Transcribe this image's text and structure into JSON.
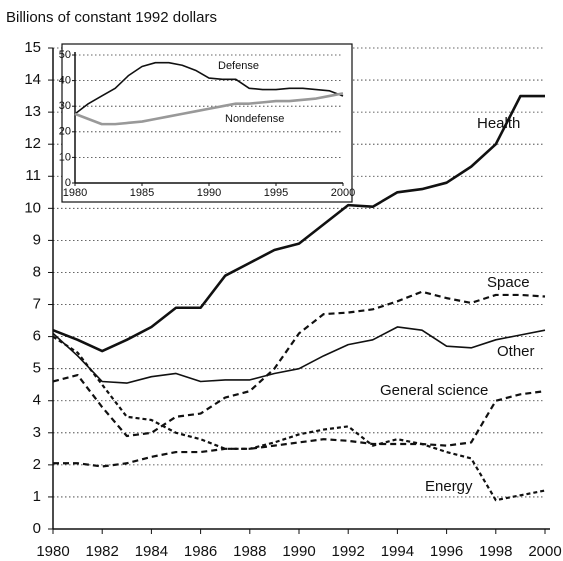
{
  "chart_data": [
    {
      "type": "line",
      "y_label": "Billions of constant 1992 dollars",
      "x": [
        1980,
        1981,
        1982,
        1983,
        1984,
        1985,
        1986,
        1987,
        1988,
        1989,
        1990,
        1991,
        1992,
        1993,
        1994,
        1995,
        1996,
        1997,
        1998,
        1999,
        2000
      ],
      "xlim": [
        1980,
        2000
      ],
      "xticks": [
        1980,
        1982,
        1984,
        1986,
        1988,
        1990,
        1992,
        1994,
        1996,
        1998,
        2000
      ],
      "ylim": [
        0,
        15
      ],
      "yticks": [
        0,
        1,
        2,
        3,
        4,
        5,
        6,
        7,
        8,
        9,
        10,
        11,
        12,
        13,
        14,
        15
      ],
      "grid": true,
      "series": [
        {
          "name": "Health",
          "color": "#111111",
          "line_style": "solid-thick",
          "values": [
            6.2,
            5.9,
            5.55,
            5.9,
            6.3,
            6.9,
            6.9,
            7.9,
            8.3,
            8.7,
            8.9,
            9.5,
            10.1,
            10.05,
            10.5,
            10.6,
            10.8,
            11.3,
            12.0,
            13.5,
            13.5
          ]
        },
        {
          "name": "Space",
          "color": "#111111",
          "line_style": "dashed",
          "values": [
            4.6,
            4.8,
            3.8,
            2.9,
            3.0,
            3.5,
            3.6,
            4.1,
            4.3,
            5.0,
            6.1,
            6.7,
            6.75,
            6.85,
            7.1,
            7.4,
            7.2,
            7.05,
            7.3,
            7.3,
            7.25
          ]
        },
        {
          "name": "Other",
          "color": "#111111",
          "line_style": "solid",
          "values": [
            6.1,
            5.4,
            4.6,
            4.55,
            4.75,
            4.85,
            4.6,
            4.65,
            4.65,
            4.85,
            5.0,
            5.4,
            5.75,
            5.9,
            6.3,
            6.2,
            5.7,
            5.65,
            5.9,
            6.05,
            6.2
          ]
        },
        {
          "name": "General science",
          "color": "#111111",
          "line_style": "dashed",
          "values": [
            2.05,
            2.05,
            1.95,
            2.05,
            2.25,
            2.4,
            2.4,
            2.5,
            2.5,
            2.6,
            2.7,
            2.8,
            2.75,
            2.65,
            2.65,
            2.65,
            2.6,
            2.7,
            4.0,
            4.2,
            4.3
          ]
        },
        {
          "name": "Energy",
          "color": "#111111",
          "line_style": "dotted",
          "values": [
            6.0,
            5.5,
            4.5,
            3.5,
            3.4,
            3.0,
            2.8,
            2.5,
            2.5,
            2.7,
            2.95,
            3.1,
            3.2,
            2.6,
            2.8,
            2.65,
            2.4,
            2.2,
            0.9,
            1.05,
            1.2
          ]
        }
      ]
    },
    {
      "type": "line",
      "x": [
        1980,
        1981,
        1982,
        1983,
        1984,
        1985,
        1986,
        1987,
        1988,
        1989,
        1990,
        1991,
        1992,
        1993,
        1994,
        1995,
        1996,
        1997,
        1998,
        1999,
        2000
      ],
      "xlim": [
        1980,
        2000
      ],
      "xticks": [
        1980,
        1985,
        1990,
        1995,
        2000
      ],
      "ylim": [
        0,
        50
      ],
      "yticks": [
        0,
        10,
        20,
        30,
        40,
        50
      ],
      "grid": true,
      "series": [
        {
          "name": "Defense",
          "color": "#111111",
          "line_style": "solid",
          "values": [
            27,
            31,
            34,
            37,
            42,
            45.5,
            47,
            47,
            46,
            44,
            41,
            40.5,
            40.5,
            37,
            36.5,
            36.5,
            37,
            37,
            36.5,
            36,
            34
          ]
        },
        {
          "name": "Nondefense",
          "color": "#999999",
          "line_style": "solid-thick",
          "values": [
            27,
            25,
            23,
            23,
            23.5,
            24,
            25,
            26,
            27,
            28,
            29,
            30,
            31,
            31,
            31.5,
            32,
            32,
            32.5,
            33,
            34,
            35
          ]
        }
      ]
    }
  ]
}
